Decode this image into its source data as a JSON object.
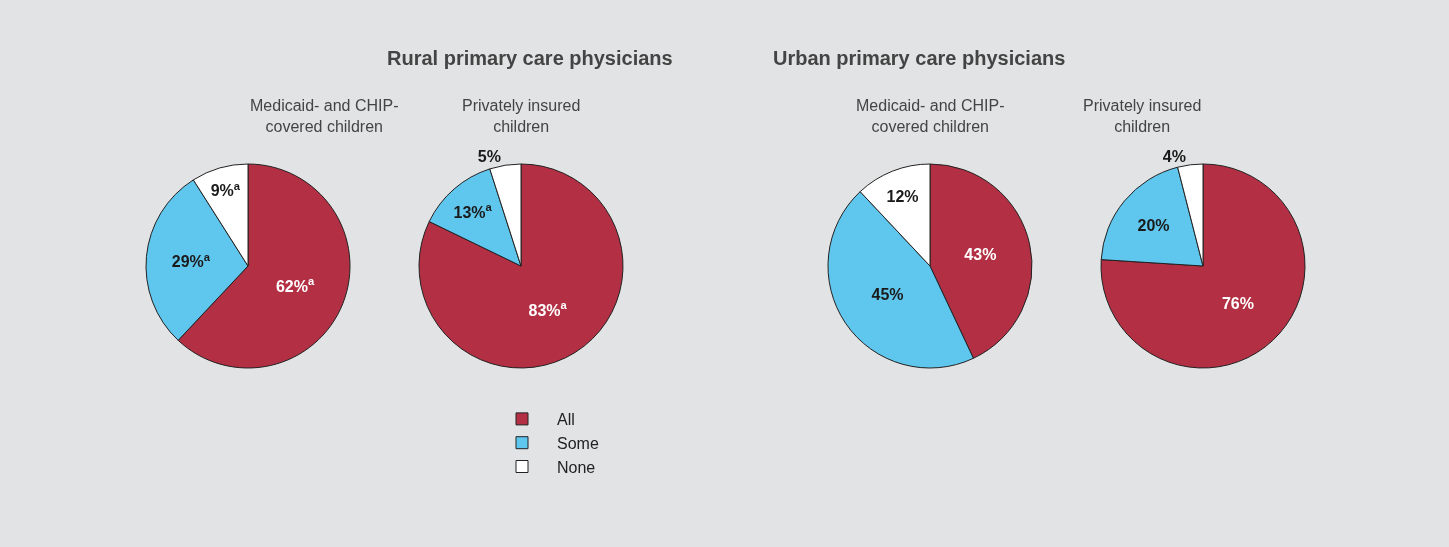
{
  "chart_data": [
    {
      "type": "pie",
      "subtitle": "Medicaid- and CHIP-\ncovered children",
      "categories": [
        "All",
        "Some",
        "None"
      ],
      "values": [
        62,
        29,
        9
      ],
      "colors": [
        "#b33044",
        "#5fc6ee",
        "#ffffff"
      ],
      "value_labels": [
        "62%$^{a}$",
        "29%$^{a}$",
        "9%$^{a}$"
      ],
      "legend": "bottom right"
    },
    {
      "type": "pie",
      "title": "Rural primary care physicians",
      "subtitle": "Privately insured\nchildren",
      "values": [
        83,
        13,
        5
      ],
      "colors": [
        "#b33044",
        "#5fc6ee",
        "#ffffff"
      ],
      "value_labels": [
        "83%$^{a}$",
        "13%$^{a}$",
        "5%"
      ]
    },
    {
      "type": "pie",
      "title": "Urban primary care physicians",
      "subtitle": "Medicaid- and CHIP-\ncovered children",
      "values": [
        43,
        45,
        12
      ],
      "colors": [
        "#b33044",
        "#5fc6ee",
        "#ffffff"
      ],
      "value_labels": [
        "43%",
        "45%",
        "12%"
      ]
    },
    {
      "type": "pie",
      "subtitle": "Privately insured\nchildren",
      "values": [
        76,
        20,
        4
      ],
      "colors": [
        "#b33044",
        "#5fc6ee",
        "#ffffff"
      ],
      "value_labels": [
        "76%",
        "20%",
        "4%"
      ]
    }
  ]
}
